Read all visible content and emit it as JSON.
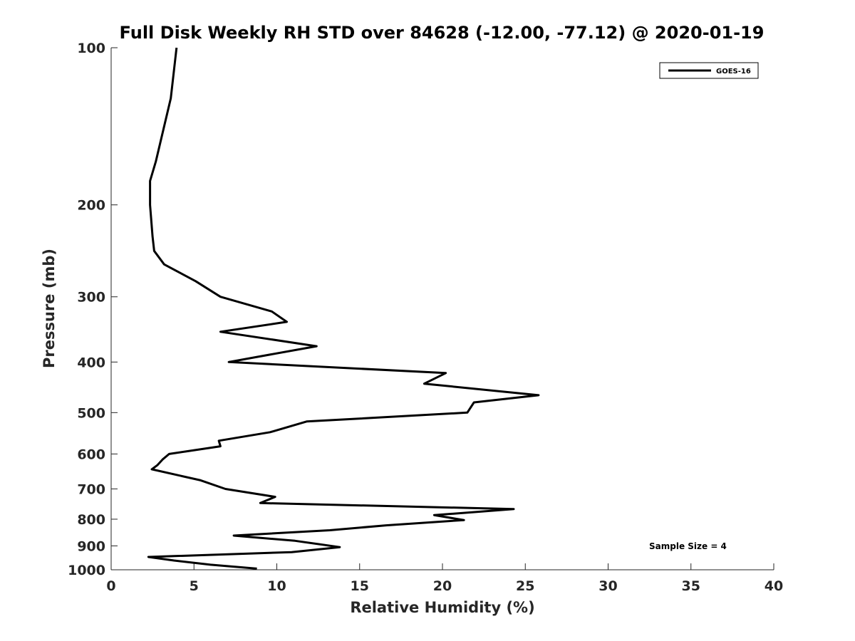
{
  "chart_data": {
    "type": "line",
    "title": "Full Disk Weekly RH STD over 84628 (-12.00, -77.12) @ 2020-01-19",
    "xlabel": "Relative Humidity (%)",
    "ylabel": "Pressure (mb)",
    "xlim": [
      0,
      40
    ],
    "ylim": [
      100,
      1000
    ],
    "y_scale": "log",
    "y_reversed": true,
    "x_ticks": [
      0,
      5,
      10,
      15,
      20,
      25,
      30,
      35,
      40
    ],
    "y_ticks": [
      100,
      200,
      300,
      400,
      500,
      600,
      700,
      800,
      900,
      1000
    ],
    "legend_position": "top-right",
    "grid": false,
    "series": [
      {
        "name": "GOES-16",
        "color": "#000000",
        "points": [
          [
            3.95,
            100
          ],
          [
            3.6,
            125
          ],
          [
            2.7,
            165
          ],
          [
            2.35,
            180
          ],
          [
            2.35,
            200
          ],
          [
            2.5,
            230
          ],
          [
            2.6,
            245
          ],
          [
            3.2,
            260
          ],
          [
            5.1,
            280
          ],
          [
            6.6,
            300
          ],
          [
            9.7,
            320
          ],
          [
            10.6,
            335
          ],
          [
            6.6,
            350
          ],
          [
            12.4,
            373
          ],
          [
            7.1,
            400
          ],
          [
            20.2,
            420
          ],
          [
            18.9,
            440
          ],
          [
            25.8,
            463
          ],
          [
            21.9,
            478
          ],
          [
            21.5,
            500
          ],
          [
            11.8,
            520
          ],
          [
            9.6,
            545
          ],
          [
            6.5,
            566
          ],
          [
            6.6,
            580
          ],
          [
            3.5,
            600
          ],
          [
            3.1,
            615
          ],
          [
            2.8,
            630
          ],
          [
            2.45,
            642
          ],
          [
            5.4,
            674
          ],
          [
            6.9,
            700
          ],
          [
            9.9,
            725
          ],
          [
            9.0,
            745
          ],
          [
            24.3,
            765
          ],
          [
            19.5,
            786
          ],
          [
            21.3,
            803
          ],
          [
            16.6,
            822
          ],
          [
            13.2,
            840
          ],
          [
            7.4,
            860
          ],
          [
            11.1,
            880
          ],
          [
            13.8,
            905
          ],
          [
            10.9,
            925
          ],
          [
            2.25,
            945
          ],
          [
            3.8,
            960
          ],
          [
            6.0,
            978
          ],
          [
            8.8,
            995
          ]
        ]
      }
    ],
    "annotations": [
      "Sample Size = 4"
    ]
  }
}
